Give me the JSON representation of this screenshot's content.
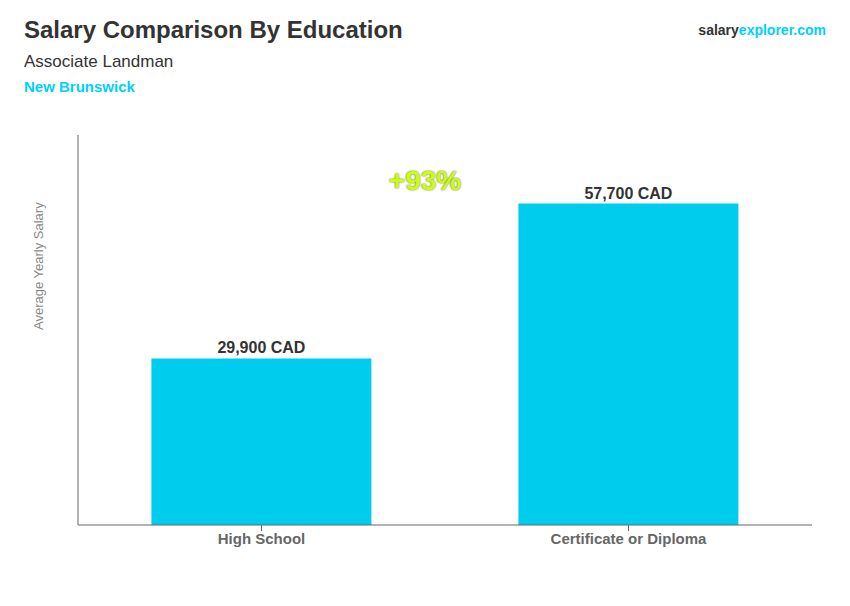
{
  "chart_data": {
    "type": "bar",
    "title": "Salary Comparison By Education",
    "subtitle": "Associate Landman",
    "annotations": [
      {
        "text": "New Brunswick",
        "color": "#00CFFF"
      },
      {
        "text": "salary"
      },
      {
        "text": "explorer.com",
        "color": "#00CFFF"
      },
      {
        "text": "+93%",
        "color": "#CCFF00"
      }
    ],
    "ylabel": "Average Yearly Salary",
    "categories": [
      "High School",
      "Certificate or Diploma"
    ],
    "values": [
      29900,
      57700
    ],
    "value_labels": [
      "29,900 CAD",
      "57,700 CAD"
    ],
    "color": "#00CCEE",
    "ylim": [
      0,
      70000
    ],
    "grid": false,
    "data_labels": true,
    "tick_labels": "x"
  }
}
